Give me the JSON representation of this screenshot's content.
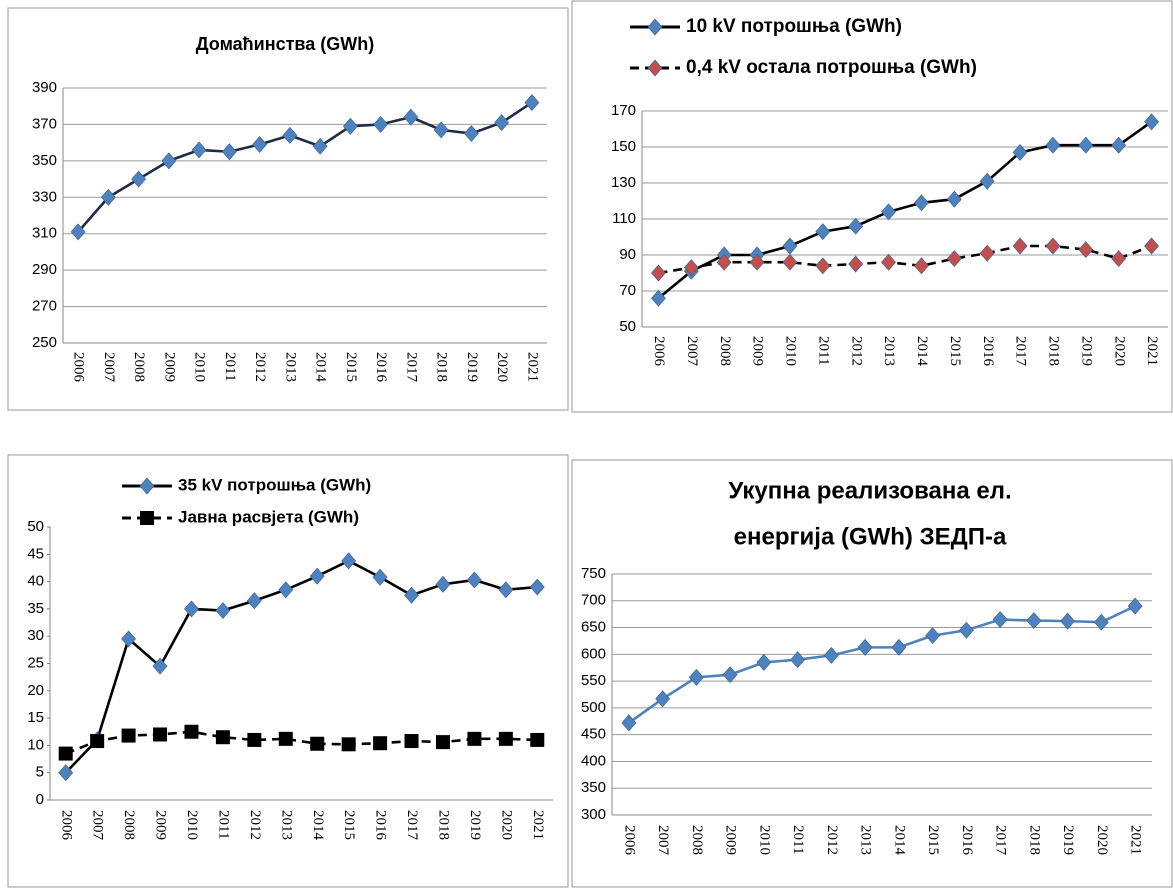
{
  "chart_data": [
    {
      "type": "line",
      "title": [
        "Домаћинства  (GWh)"
      ],
      "categories": [
        "2006",
        "2007",
        "2008",
        "2009",
        "2010",
        "2011",
        "2012",
        "2013",
        "2014",
        "2015",
        "2016",
        "2017",
        "2018",
        "2019",
        "2020",
        "2021"
      ],
      "series": [
        {
          "name": null,
          "color": "#1f2a44",
          "marker_color": "#4f81bd",
          "marker": "diamond",
          "dashed": false,
          "values": [
            311,
            330,
            340,
            350,
            356,
            355,
            359,
            364,
            358,
            369,
            370,
            374,
            367,
            365,
            371,
            382
          ]
        }
      ],
      "ylim": [
        250,
        390
      ],
      "yticks": [
        250,
        270,
        290,
        310,
        330,
        350,
        370,
        390
      ],
      "grid": true,
      "legend": false
    },
    {
      "type": "line",
      "title": [],
      "categories": [
        "2006",
        "2007",
        "2008",
        "2009",
        "2010",
        "2011",
        "2012",
        "2013",
        "2014",
        "2015",
        "2016",
        "2017",
        "2018",
        "2019",
        "2020",
        "2021"
      ],
      "series": [
        {
          "name": "10 kV потрошња (GWh)",
          "color": "#000000",
          "marker_color": "#4f81bd",
          "marker": "diamond",
          "dashed": false,
          "values": [
            66,
            81,
            90,
            90,
            95,
            103,
            106,
            114,
            119,
            121,
            131,
            147,
            151,
            151,
            151,
            164
          ]
        },
        {
          "name": "0,4 kV остала потрошња (GWh)",
          "color": "#000000",
          "marker_color": "#c0504d",
          "marker": "diamond",
          "dashed": true,
          "values": [
            80,
            83,
            86,
            86,
            86,
            84,
            85,
            86,
            84,
            88,
            91,
            95,
            95,
            93,
            88,
            95
          ]
        }
      ],
      "ylim": [
        50,
        170
      ],
      "yticks": [
        50,
        70,
        90,
        110,
        130,
        150,
        170
      ],
      "grid": true,
      "legend": "top"
    },
    {
      "type": "line",
      "title": [],
      "categories": [
        "2006",
        "2007",
        "2008",
        "2009",
        "2010",
        "2011",
        "2012",
        "2013",
        "2014",
        "2015",
        "2016",
        "2017",
        "2018",
        "2019",
        "2020",
        "2021"
      ],
      "series": [
        {
          "name": "35 kV потрошња (GWh)",
          "color": "#000000",
          "marker_color": "#4f81bd",
          "marker": "diamond",
          "dashed": false,
          "values": [
            5,
            11,
            29.5,
            24.5,
            35,
            34.7,
            36.5,
            38.5,
            41,
            43.8,
            40.8,
            37.5,
            39.5,
            40.3,
            38.5,
            39
          ]
        },
        {
          "name": "Јавна расвјета (GWh)",
          "color": "#000000",
          "marker_color": "#000000",
          "marker": "square",
          "dashed": true,
          "values": [
            8.5,
            10.8,
            11.8,
            12,
            12.5,
            11.5,
            11,
            11.2,
            10.3,
            10.2,
            10.4,
            10.8,
            10.6,
            11.2,
            11.2,
            11
          ]
        }
      ],
      "ylim": [
        0,
        50
      ],
      "yticks": [
        0,
        5,
        10,
        15,
        20,
        25,
        30,
        35,
        40,
        45,
        50
      ],
      "grid": false,
      "legend": "top"
    },
    {
      "type": "line",
      "title": [
        "Укупна реализована ел.",
        "енергија (GWh) ЗЕДП-а"
      ],
      "categories": [
        "2006",
        "2007",
        "2008",
        "2009",
        "2010",
        "2011",
        "2012",
        "2013",
        "2014",
        "2015",
        "2016",
        "2017",
        "2018",
        "2019",
        "2020",
        "2021"
      ],
      "series": [
        {
          "name": null,
          "color": "#4f81bd",
          "marker_color": "#4f81bd",
          "marker": "diamond",
          "dashed": false,
          "values": [
            472,
            517,
            557,
            562,
            585,
            590,
            598,
            613,
            613,
            635,
            645,
            665,
            663,
            662,
            660,
            690
          ]
        }
      ],
      "ylim": [
        300,
        750
      ],
      "yticks": [
        300,
        350,
        400,
        450,
        500,
        550,
        600,
        650,
        700,
        750
      ],
      "grid": true,
      "legend": false
    }
  ]
}
